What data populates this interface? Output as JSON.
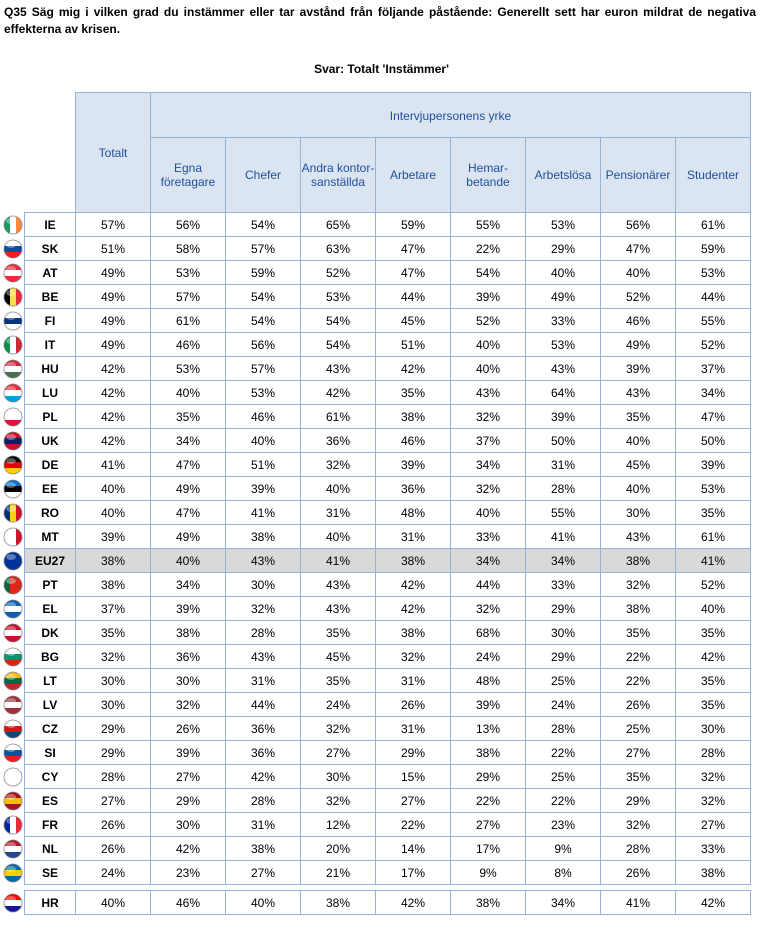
{
  "header": {
    "title": "Q35 Säg mig i vilken grad du instämmer eller tar avstånd från följande påstående: Generellt sett har euron mildrat de negativa effekterna av krisen.",
    "subtitle": "Svar: Totalt 'Instämmer'"
  },
  "table": {
    "total_header": "Totalt",
    "group_header": "Intervjupersonens yrke",
    "columns": [
      "Egna\nföretagare",
      "Chefer",
      "Andra kontor-\nsanställda",
      "Arbetare",
      "Hemar-\nbetande",
      "Arbetslösa",
      "Pensionärer",
      "Studenter"
    ],
    "rows": [
      [
        "IE",
        "57%",
        "56%",
        "54%",
        "65%",
        "59%",
        "55%",
        "53%",
        "56%",
        "61%"
      ],
      [
        "SK",
        "51%",
        "58%",
        "57%",
        "63%",
        "47%",
        "22%",
        "29%",
        "47%",
        "59%"
      ],
      [
        "AT",
        "49%",
        "53%",
        "59%",
        "52%",
        "47%",
        "54%",
        "40%",
        "40%",
        "53%"
      ],
      [
        "BE",
        "49%",
        "57%",
        "54%",
        "53%",
        "44%",
        "39%",
        "49%",
        "52%",
        "44%"
      ],
      [
        "FI",
        "49%",
        "61%",
        "54%",
        "54%",
        "45%",
        "52%",
        "33%",
        "46%",
        "55%"
      ],
      [
        "IT",
        "49%",
        "46%",
        "56%",
        "54%",
        "51%",
        "40%",
        "53%",
        "49%",
        "52%"
      ],
      [
        "HU",
        "42%",
        "53%",
        "57%",
        "43%",
        "42%",
        "40%",
        "43%",
        "39%",
        "37%"
      ],
      [
        "LU",
        "42%",
        "40%",
        "53%",
        "42%",
        "35%",
        "43%",
        "64%",
        "43%",
        "34%"
      ],
      [
        "PL",
        "42%",
        "35%",
        "46%",
        "61%",
        "38%",
        "32%",
        "39%",
        "35%",
        "47%"
      ],
      [
        "UK",
        "42%",
        "34%",
        "40%",
        "36%",
        "46%",
        "37%",
        "50%",
        "40%",
        "50%"
      ],
      [
        "DE",
        "41%",
        "47%",
        "51%",
        "32%",
        "39%",
        "34%",
        "31%",
        "45%",
        "39%"
      ],
      [
        "EE",
        "40%",
        "49%",
        "39%",
        "40%",
        "36%",
        "32%",
        "28%",
        "40%",
        "53%"
      ],
      [
        "RO",
        "40%",
        "47%",
        "41%",
        "31%",
        "48%",
        "40%",
        "55%",
        "30%",
        "35%"
      ],
      [
        "MT",
        "39%",
        "49%",
        "38%",
        "40%",
        "31%",
        "33%",
        "41%",
        "43%",
        "61%"
      ],
      [
        "EU27",
        "38%",
        "40%",
        "43%",
        "41%",
        "38%",
        "34%",
        "34%",
        "38%",
        "41%"
      ],
      [
        "PT",
        "38%",
        "34%",
        "30%",
        "43%",
        "42%",
        "44%",
        "33%",
        "32%",
        "52%"
      ],
      [
        "EL",
        "37%",
        "39%",
        "32%",
        "43%",
        "42%",
        "32%",
        "29%",
        "38%",
        "40%"
      ],
      [
        "DK",
        "35%",
        "38%",
        "28%",
        "35%",
        "38%",
        "68%",
        "30%",
        "35%",
        "35%"
      ],
      [
        "BG",
        "32%",
        "36%",
        "43%",
        "45%",
        "32%",
        "24%",
        "29%",
        "22%",
        "42%"
      ],
      [
        "LT",
        "30%",
        "30%",
        "31%",
        "35%",
        "31%",
        "48%",
        "25%",
        "22%",
        "35%"
      ],
      [
        "LV",
        "30%",
        "32%",
        "44%",
        "24%",
        "26%",
        "39%",
        "24%",
        "26%",
        "35%"
      ],
      [
        "CZ",
        "29%",
        "26%",
        "36%",
        "32%",
        "31%",
        "13%",
        "28%",
        "25%",
        "30%"
      ],
      [
        "SI",
        "29%",
        "39%",
        "36%",
        "27%",
        "29%",
        "38%",
        "22%",
        "27%",
        "28%"
      ],
      [
        "CY",
        "28%",
        "27%",
        "42%",
        "30%",
        "15%",
        "29%",
        "25%",
        "35%",
        "32%"
      ],
      [
        "ES",
        "27%",
        "29%",
        "28%",
        "32%",
        "27%",
        "22%",
        "22%",
        "29%",
        "32%"
      ],
      [
        "FR",
        "26%",
        "30%",
        "31%",
        "12%",
        "22%",
        "27%",
        "23%",
        "32%",
        "27%"
      ],
      [
        "NL",
        "26%",
        "42%",
        "38%",
        "20%",
        "14%",
        "17%",
        "9%",
        "28%",
        "33%"
      ],
      [
        "SE",
        "24%",
        "23%",
        "27%",
        "21%",
        "17%",
        "9%",
        "8%",
        "26%",
        "38%"
      ],
      [
        "HR",
        "40%",
        "46%",
        "40%",
        "38%",
        "42%",
        "38%",
        "34%",
        "41%",
        "42%"
      ]
    ]
  }
}
